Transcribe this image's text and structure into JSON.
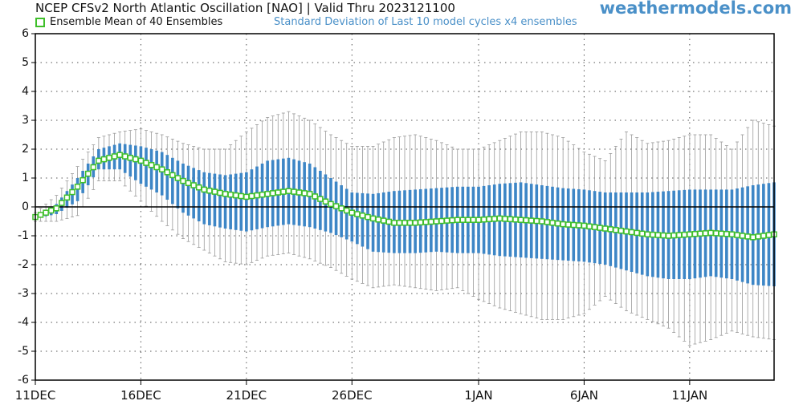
{
  "header": {
    "title": "NCEP CFSv2 North Atlantic Oscillation [NAO] | Valid Thru 2023121100",
    "watermark": "weathermodels.com",
    "legend_mean": "Ensemble Mean of 40 Ensembles",
    "legend_std": "Standard Deviation of Last 10 model cycles x4 ensembles"
  },
  "colors": {
    "mean_marker": "#3fbf2a",
    "std_bar": "#3d86c6",
    "whisker": "#9a9a9a",
    "zero_line": "#000000",
    "grid": "#555555"
  },
  "chart_data": {
    "type": "line",
    "title": "NCEP CFSv2 North Atlantic Oscillation [NAO] | Valid Thru 2023121100",
    "xlabel": "",
    "ylabel": "",
    "ylim": [
      -6,
      6
    ],
    "yticks": [
      -6,
      -5,
      -4,
      -3,
      -2,
      -1,
      0,
      1,
      2,
      3,
      4,
      5,
      6
    ],
    "x_start": "2023-12-11",
    "x_end": "2024-01-15",
    "xticks": [
      {
        "date": "2023-12-11",
        "label": "11DEC"
      },
      {
        "date": "2023-12-16",
        "label": "16DEC"
      },
      {
        "date": "2023-12-21",
        "label": "21DEC"
      },
      {
        "date": "2023-12-26",
        "label": "26DEC"
      },
      {
        "date": "2024-01-01",
        "label": "1JAN"
      },
      {
        "date": "2024-01-06",
        "label": "6JAN"
      },
      {
        "date": "2024-01-11",
        "label": "11JAN"
      }
    ],
    "grid": true,
    "zero_line": true,
    "legend": "top-left",
    "points_per_day": 4,
    "series": [
      {
        "name": "Ensemble Mean of 40 Ensembles",
        "anchors": [
          [
            "2023-12-11",
            -0.35
          ],
          [
            "2023-12-12",
            -0.05
          ],
          [
            "2023-12-13",
            0.7
          ],
          [
            "2023-12-14",
            1.6
          ],
          [
            "2023-12-15",
            1.8
          ],
          [
            "2023-12-16",
            1.6
          ],
          [
            "2023-12-17",
            1.3
          ],
          [
            "2023-12-18",
            0.9
          ],
          [
            "2023-12-19",
            0.6
          ],
          [
            "2023-12-20",
            0.45
          ],
          [
            "2023-12-21",
            0.35
          ],
          [
            "2023-12-22",
            0.45
          ],
          [
            "2023-12-23",
            0.55
          ],
          [
            "2023-12-24",
            0.45
          ],
          [
            "2023-12-25",
            0.1
          ],
          [
            "2023-12-26",
            -0.2
          ],
          [
            "2023-12-27",
            -0.4
          ],
          [
            "2023-12-28",
            -0.55
          ],
          [
            "2023-12-29",
            -0.55
          ],
          [
            "2023-12-30",
            -0.5
          ],
          [
            "2023-12-31",
            -0.45
          ],
          [
            "2024-01-01",
            -0.45
          ],
          [
            "2024-01-02",
            -0.4
          ],
          [
            "2024-01-03",
            -0.45
          ],
          [
            "2024-01-04",
            -0.5
          ],
          [
            "2024-01-05",
            -0.6
          ],
          [
            "2024-01-06",
            -0.65
          ],
          [
            "2024-01-07",
            -0.75
          ],
          [
            "2024-01-08",
            -0.85
          ],
          [
            "2024-01-09",
            -0.95
          ],
          [
            "2024-01-10",
            -1.0
          ],
          [
            "2024-01-11",
            -0.95
          ],
          [
            "2024-01-12",
            -0.9
          ],
          [
            "2024-01-13",
            -0.95
          ],
          [
            "2024-01-14",
            -1.05
          ],
          [
            "2024-01-15",
            -0.95
          ]
        ]
      },
      {
        "name": "Standard Deviation of Last 10 model cycles x4 ensembles",
        "bar_top_anchors": [
          [
            "2023-12-11",
            -0.3
          ],
          [
            "2023-12-12",
            0.1
          ],
          [
            "2023-12-13",
            1.0
          ],
          [
            "2023-12-14",
            2.0
          ],
          [
            "2023-12-15",
            2.2
          ],
          [
            "2023-12-16",
            2.1
          ],
          [
            "2023-12-17",
            1.9
          ],
          [
            "2023-12-18",
            1.5
          ],
          [
            "2023-12-19",
            1.2
          ],
          [
            "2023-12-20",
            1.1
          ],
          [
            "2023-12-21",
            1.2
          ],
          [
            "2023-12-22",
            1.6
          ],
          [
            "2023-12-23",
            1.7
          ],
          [
            "2023-12-24",
            1.5
          ],
          [
            "2023-12-25",
            1.0
          ],
          [
            "2023-12-26",
            0.5
          ],
          [
            "2023-12-27",
            0.45
          ],
          [
            "2023-12-28",
            0.55
          ],
          [
            "2023-12-29",
            0.6
          ],
          [
            "2023-12-30",
            0.65
          ],
          [
            "2023-12-31",
            0.7
          ],
          [
            "2024-01-01",
            0.7
          ],
          [
            "2024-01-02",
            0.8
          ],
          [
            "2024-01-03",
            0.85
          ],
          [
            "2024-01-04",
            0.75
          ],
          [
            "2024-01-05",
            0.65
          ],
          [
            "2024-01-06",
            0.6
          ],
          [
            "2024-01-07",
            0.5
          ],
          [
            "2024-01-08",
            0.5
          ],
          [
            "2024-01-09",
            0.5
          ],
          [
            "2024-01-10",
            0.55
          ],
          [
            "2024-01-11",
            0.6
          ],
          [
            "2024-01-12",
            0.6
          ],
          [
            "2024-01-13",
            0.6
          ],
          [
            "2024-01-14",
            0.75
          ],
          [
            "2024-01-15",
            0.85
          ]
        ],
        "bar_bottom_anchors": [
          [
            "2023-12-11",
            -0.4
          ],
          [
            "2023-12-12",
            -0.25
          ],
          [
            "2023-12-13",
            0.2
          ],
          [
            "2023-12-14",
            1.3
          ],
          [
            "2023-12-15",
            1.3
          ],
          [
            "2023-12-16",
            0.8
          ],
          [
            "2023-12-17",
            0.4
          ],
          [
            "2023-12-18",
            -0.2
          ],
          [
            "2023-12-19",
            -0.6
          ],
          [
            "2023-12-20",
            -0.75
          ],
          [
            "2023-12-21",
            -0.85
          ],
          [
            "2023-12-22",
            -0.7
          ],
          [
            "2023-12-23",
            -0.6
          ],
          [
            "2023-12-24",
            -0.7
          ],
          [
            "2023-12-25",
            -0.9
          ],
          [
            "2023-12-26",
            -1.2
          ],
          [
            "2023-12-27",
            -1.55
          ],
          [
            "2023-12-28",
            -1.6
          ],
          [
            "2023-12-29",
            -1.6
          ],
          [
            "2023-12-30",
            -1.55
          ],
          [
            "2023-12-31",
            -1.6
          ],
          [
            "2024-01-01",
            -1.6
          ],
          [
            "2024-01-02",
            -1.7
          ],
          [
            "2024-01-03",
            -1.75
          ],
          [
            "2024-01-04",
            -1.8
          ],
          [
            "2024-01-05",
            -1.85
          ],
          [
            "2024-01-06",
            -1.9
          ],
          [
            "2024-01-07",
            -2.0
          ],
          [
            "2024-01-08",
            -2.2
          ],
          [
            "2024-01-09",
            -2.4
          ],
          [
            "2024-01-10",
            -2.5
          ],
          [
            "2024-01-11",
            -2.5
          ],
          [
            "2024-01-12",
            -2.4
          ],
          [
            "2024-01-13",
            -2.5
          ],
          [
            "2024-01-14",
            -2.7
          ],
          [
            "2024-01-15",
            -2.75
          ]
        ],
        "whisker_top_anchors": [
          [
            "2023-12-11",
            -0.2
          ],
          [
            "2023-12-12",
            0.4
          ],
          [
            "2023-12-13",
            1.4
          ],
          [
            "2023-12-14",
            2.4
          ],
          [
            "2023-12-15",
            2.6
          ],
          [
            "2023-12-16",
            2.7
          ],
          [
            "2023-12-17",
            2.5
          ],
          [
            "2023-12-18",
            2.2
          ],
          [
            "2023-12-19",
            2.0
          ],
          [
            "2023-12-20",
            2.0
          ],
          [
            "2023-12-21",
            2.6
          ],
          [
            "2023-12-22",
            3.1
          ],
          [
            "2023-12-23",
            3.3
          ],
          [
            "2023-12-24",
            3.0
          ],
          [
            "2023-12-25",
            2.5
          ],
          [
            "2023-12-26",
            2.1
          ],
          [
            "2023-12-27",
            2.1
          ],
          [
            "2023-12-28",
            2.4
          ],
          [
            "2023-12-29",
            2.5
          ],
          [
            "2023-12-30",
            2.3
          ],
          [
            "2023-12-31",
            2.0
          ],
          [
            "2024-01-01",
            2.0
          ],
          [
            "2024-01-02",
            2.3
          ],
          [
            "2024-01-03",
            2.6
          ],
          [
            "2024-01-04",
            2.6
          ],
          [
            "2024-01-05",
            2.4
          ],
          [
            "2024-01-06",
            1.9
          ],
          [
            "2024-01-07",
            1.6
          ],
          [
            "2024-01-08",
            2.6
          ],
          [
            "2024-01-09",
            2.2
          ],
          [
            "2024-01-10",
            2.3
          ],
          [
            "2024-01-11",
            2.5
          ],
          [
            "2024-01-12",
            2.5
          ],
          [
            "2024-01-13",
            2.0
          ],
          [
            "2024-01-14",
            3.0
          ],
          [
            "2024-01-15",
            2.8
          ]
        ],
        "whisker_bottom_anchors": [
          [
            "2023-12-11",
            -0.5
          ],
          [
            "2023-12-12",
            -0.5
          ],
          [
            "2023-12-13",
            -0.3
          ],
          [
            "2023-12-14",
            0.9
          ],
          [
            "2023-12-15",
            0.9
          ],
          [
            "2023-12-16",
            0.2
          ],
          [
            "2023-12-17",
            -0.5
          ],
          [
            "2023-12-18",
            -1.1
          ],
          [
            "2023-12-19",
            -1.5
          ],
          [
            "2023-12-20",
            -1.9
          ],
          [
            "2023-12-21",
            -2.0
          ],
          [
            "2023-12-22",
            -1.7
          ],
          [
            "2023-12-23",
            -1.6
          ],
          [
            "2023-12-24",
            -1.8
          ],
          [
            "2023-12-25",
            -2.1
          ],
          [
            "2023-12-26",
            -2.5
          ],
          [
            "2023-12-27",
            -2.8
          ],
          [
            "2023-12-28",
            -2.7
          ],
          [
            "2023-12-29",
            -2.8
          ],
          [
            "2023-12-30",
            -2.9
          ],
          [
            "2023-12-31",
            -2.8
          ],
          [
            "2024-01-01",
            -3.2
          ],
          [
            "2024-01-02",
            -3.5
          ],
          [
            "2024-01-03",
            -3.7
          ],
          [
            "2024-01-04",
            -3.9
          ],
          [
            "2024-01-05",
            -3.9
          ],
          [
            "2024-01-06",
            -3.7
          ],
          [
            "2024-01-07",
            -3.1
          ],
          [
            "2024-01-08",
            -3.6
          ],
          [
            "2024-01-09",
            -3.9
          ],
          [
            "2024-01-10",
            -4.2
          ],
          [
            "2024-01-11",
            -4.8
          ],
          [
            "2024-01-12",
            -4.6
          ],
          [
            "2024-01-13",
            -4.3
          ],
          [
            "2024-01-14",
            -4.5
          ],
          [
            "2024-01-15",
            -4.6
          ]
        ]
      }
    ]
  }
}
